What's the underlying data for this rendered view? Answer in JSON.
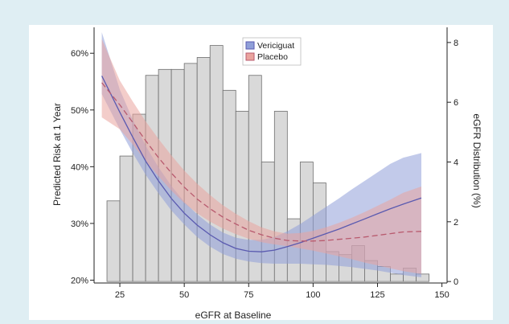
{
  "chart_data": {
    "type": "bar+line",
    "xlabel": "eGFR at Baseline",
    "ylabel_left": "Predicted Risk at 1 Year",
    "ylabel_right": "eGFR Distribution (%)",
    "x_ticks": [
      25,
      50,
      75,
      100,
      125,
      150
    ],
    "y_left_ticks": [
      "20%",
      "30%",
      "40%",
      "50%",
      "60%"
    ],
    "y_left_tick_values": [
      20,
      30,
      40,
      50,
      60
    ],
    "y_right_ticks": [
      0,
      2,
      4,
      6,
      8
    ],
    "x_range": [
      15,
      152
    ],
    "y_left_range": [
      19.5,
      64
    ],
    "y_right_range": [
      -0.05,
      8.4
    ],
    "histogram": {
      "bin_width": 5,
      "bin_starts": [
        20,
        25,
        30,
        35,
        40,
        45,
        50,
        55,
        60,
        65,
        70,
        75,
        80,
        85,
        90,
        95,
        100,
        105,
        110,
        115,
        120,
        125,
        130,
        135,
        140
      ],
      "values": [
        2.7,
        4.2,
        5.6,
        6.9,
        7.1,
        7.1,
        7.3,
        7.5,
        7.9,
        6.4,
        5.7,
        6.9,
        4.0,
        5.7,
        2.1,
        4.0,
        3.3,
        1.0,
        0.9,
        1.2,
        0.7,
        0.5,
        0.25,
        0.45,
        0.25
      ]
    },
    "series": [
      {
        "name": "Vericiguat",
        "color": "#5a5ab0",
        "band_color": "#8f9fd8",
        "line_style": "solid",
        "x": [
          18,
          25,
          30,
          35,
          40,
          45,
          50,
          55,
          60,
          65,
          70,
          75,
          80,
          85,
          90,
          95,
          100,
          105,
          110,
          115,
          120,
          125,
          130,
          135,
          142
        ],
        "y": [
          56,
          49.6,
          45.2,
          41.0,
          37.5,
          34.4,
          31.8,
          29.7,
          28.0,
          26.6,
          25.6,
          25.1,
          25.0,
          25.3,
          25.9,
          26.6,
          27.4,
          28.2,
          29.0,
          29.9,
          30.8,
          31.7,
          32.6,
          33.4,
          34.5
        ],
        "lower": [
          52.8,
          46.6,
          42.4,
          38.6,
          35.3,
          32.3,
          29.8,
          27.6,
          25.9,
          24.6,
          23.8,
          23.3,
          23.0,
          22.9,
          22.9,
          22.9,
          22.8,
          22.7,
          22.5,
          22.3,
          22.0,
          21.7,
          21.3,
          20.9,
          20.5
        ],
        "upper": [
          63.7,
          53.6,
          48.3,
          43.7,
          39.9,
          36.6,
          33.8,
          31.6,
          29.8,
          28.4,
          27.5,
          27.1,
          27.1,
          27.6,
          28.6,
          29.9,
          31.4,
          32.9,
          34.4,
          36.0,
          37.5,
          39.0,
          40.5,
          41.6,
          42.4
        ]
      },
      {
        "name": "Placebo",
        "color": "#b85a6e",
        "band_color": "#eaa49e",
        "line_style": "dashed",
        "x": [
          18,
          25,
          30,
          35,
          40,
          45,
          50,
          55,
          60,
          65,
          70,
          75,
          80,
          85,
          90,
          95,
          100,
          105,
          110,
          115,
          120,
          125,
          130,
          135,
          142
        ],
        "y": [
          54.8,
          50.9,
          47.8,
          44.6,
          41.6,
          38.9,
          36.4,
          34.3,
          32.6,
          31.1,
          29.9,
          28.8,
          28.0,
          27.4,
          27.0,
          26.9,
          26.9,
          27.0,
          27.2,
          27.4,
          27.6,
          27.9,
          28.2,
          28.5,
          28.6
        ],
        "lower": [
          48.7,
          46.6,
          43.9,
          41.0,
          38.3,
          35.8,
          33.6,
          31.8,
          30.3,
          29.1,
          28.1,
          27.3,
          26.7,
          26.3,
          26.0,
          25.6,
          25.2,
          24.7,
          24.2,
          23.7,
          23.1,
          22.6,
          22.1,
          21.6,
          21.1
        ],
        "upper": [
          62.5,
          55.2,
          51.5,
          48.0,
          44.9,
          42.0,
          39.3,
          37.0,
          35.0,
          33.2,
          31.7,
          30.4,
          29.3,
          28.6,
          28.2,
          28.3,
          28.7,
          29.3,
          30.1,
          31.0,
          32.0,
          33.1,
          34.2,
          35.4,
          36.5
        ]
      }
    ],
    "legend": {
      "position": "top-center",
      "entries": [
        "Vericiguat",
        "Placebo"
      ]
    }
  }
}
